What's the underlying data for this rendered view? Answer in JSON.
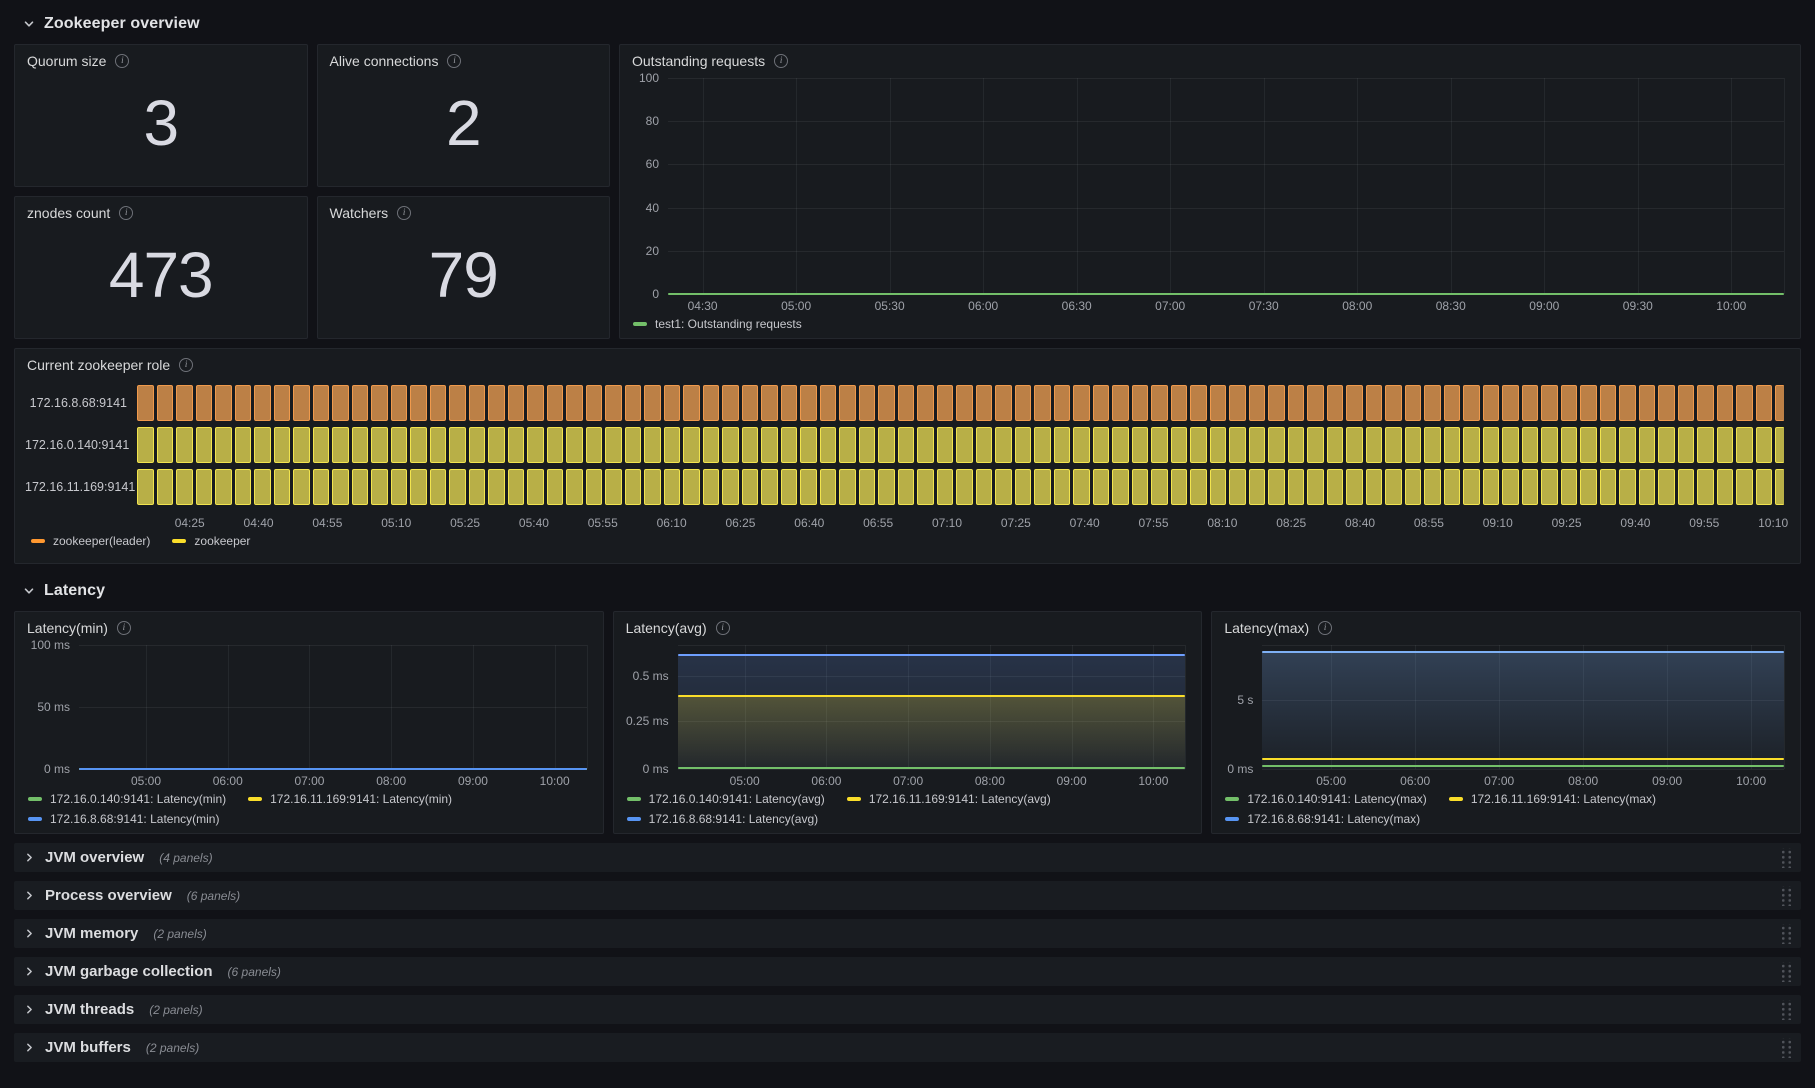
{
  "colors": {
    "background": "#111217",
    "panel": "#181B1F",
    "green": "#73BF69",
    "yellow": "#FADE2A",
    "blue": "#5794F2",
    "orange": "#FF9830"
  },
  "sections": {
    "zookeeper": {
      "title": "Zookeeper overview",
      "state": "expanded"
    },
    "latency": {
      "title": "Latency",
      "state": "expanded"
    }
  },
  "stat_panels": [
    {
      "title": "Quorum size",
      "value": "3"
    },
    {
      "title": "Alive connections",
      "value": "2"
    },
    {
      "title": "znodes count",
      "value": "473"
    },
    {
      "title": "Watchers",
      "value": "79"
    }
  ],
  "chart_data": [
    {
      "type": "line",
      "title": "Outstanding requests",
      "ylim": [
        0,
        100
      ],
      "x_ticks": [
        "04:30",
        "05:00",
        "05:30",
        "06:00",
        "06:30",
        "07:00",
        "07:30",
        "08:00",
        "08:30",
        "09:00",
        "09:30",
        "10:00"
      ],
      "series": [
        {
          "name": "test1: Outstanding requests",
          "color": "#73BF69",
          "flat_value": 0,
          "render": {
            "line_pct": 100,
            "fill": false
          }
        }
      ],
      "legend": [
        {
          "label": "test1: Outstanding requests",
          "color": "#73BF69"
        }
      ],
      "render": {
        "y_axis_width": 38,
        "x_start_pct": 3.1,
        "x_step_pct": 8.38,
        "y_ticks": [
          {
            "label": "100",
            "pct": 0
          },
          {
            "label": "80",
            "pct": 20
          },
          {
            "label": "60",
            "pct": 40
          },
          {
            "label": "40",
            "pct": 60
          },
          {
            "label": "20",
            "pct": 80
          },
          {
            "label": "0",
            "pct": 100
          }
        ]
      }
    },
    {
      "type": "state-timeline",
      "title": "Current zookeeper role",
      "rows": [
        {
          "label": "172.16.8.68:9141",
          "state": "zookeeper(leader)",
          "fill": "#BC8046",
          "border": "#F09A4C"
        },
        {
          "label": "172.16.0.140:9141",
          "state": "zookeeper",
          "fill": "#B8AF47",
          "border": "#F2E44E"
        },
        {
          "label": "172.16.11.169:9141",
          "state": "zookeeper",
          "fill": "#B8AF47",
          "border": "#F2E44E"
        }
      ],
      "x_ticks": [
        "04:25",
        "04:40",
        "04:55",
        "05:10",
        "05:25",
        "05:40",
        "05:55",
        "06:10",
        "06:25",
        "06:40",
        "06:55",
        "07:10",
        "07:25",
        "07:40",
        "07:55",
        "08:10",
        "08:25",
        "08:40",
        "08:55",
        "09:10",
        "09:25",
        "09:40",
        "09:55",
        "10:10"
      ],
      "legend": [
        {
          "label": "zookeeper(leader)",
          "color": "#FF9830"
        },
        {
          "label": "zookeeper",
          "color": "#FADE2A"
        }
      ],
      "render": {
        "label_width": 112,
        "bar_count": 86,
        "x_start_pct": 3.2,
        "x_step_pct": 4.18
      }
    },
    {
      "type": "line",
      "title": "Latency(min)",
      "unit": "ms",
      "ylim": [
        0,
        100
      ],
      "x_ticks": [
        "05:00",
        "06:00",
        "07:00",
        "08:00",
        "09:00",
        "10:00"
      ],
      "series": [
        {
          "name": "172.16.0.140:9141: Latency(min)",
          "color": "#73BF69",
          "flat_value_ms": 0,
          "render": {
            "line_pct": 100,
            "fill": false
          }
        },
        {
          "name": "172.16.11.169:9141: Latency(min)",
          "color": "#FADE2A",
          "flat_value_ms": 0,
          "render": {
            "line_pct": 100,
            "fill": false
          }
        },
        {
          "name": "172.16.8.68:9141: Latency(min)",
          "color": "#5794F2",
          "flat_value_ms": 0,
          "render": {
            "line_pct": 100,
            "fill": false
          }
        }
      ],
      "legend": [
        {
          "label": "172.16.0.140:9141: Latency(min)",
          "color": "#73BF69"
        },
        {
          "label": "172.16.11.169:9141: Latency(min)",
          "color": "#FADE2A"
        },
        {
          "label": "172.16.8.68:9141: Latency(min)",
          "color": "#5794F2"
        }
      ],
      "render": {
        "y_axis_width": 54,
        "x_start_pct": 13.2,
        "x_step_pct": 16.1,
        "y_ticks": [
          {
            "label": "100 ms",
            "pct": 0
          },
          {
            "label": "50 ms",
            "pct": 50
          },
          {
            "label": "0 ms",
            "pct": 100
          }
        ]
      }
    },
    {
      "type": "line",
      "title": "Latency(avg)",
      "unit": "ms",
      "x_ticks": [
        "05:00",
        "06:00",
        "07:00",
        "08:00",
        "09:00",
        "10:00"
      ],
      "series": [
        {
          "name": "172.16.8.68:9141: Latency(avg)",
          "color": "#6E9FFF",
          "flat_value_ms": 0.61,
          "render": {
            "line_pct": 8.3,
            "fill": true,
            "fill_top": "2E",
            "fill_bottom": "0E"
          }
        },
        {
          "name": "172.16.11.169:9141: Latency(avg)",
          "color": "#FADE2A",
          "flat_value_ms": 0.39,
          "render": {
            "line_pct": 41,
            "fill": true,
            "fill_top": "38",
            "fill_bottom": "06"
          }
        },
        {
          "name": "172.16.0.140:9141: Latency(avg)",
          "color": "#73BF69",
          "flat_value_ms": 0.01,
          "render": {
            "line_pct": 99.2,
            "fill": false
          }
        }
      ],
      "legend": [
        {
          "label": "172.16.0.140:9141: Latency(avg)",
          "color": "#73BF69"
        },
        {
          "label": "172.16.11.169:9141: Latency(avg)",
          "color": "#FADE2A"
        },
        {
          "label": "172.16.8.68:9141: Latency(avg)",
          "color": "#5794F2"
        }
      ],
      "render": {
        "y_axis_width": 54,
        "x_start_pct": 13.2,
        "x_step_pct": 16.1,
        "y_ticks": [
          {
            "label": "",
            "pct": 0
          },
          {
            "label": "0.5 ms",
            "pct": 24.7
          },
          {
            "label": "0.25 ms",
            "pct": 61
          },
          {
            "label": "0 ms",
            "pct": 100
          }
        ]
      }
    },
    {
      "type": "line",
      "title": "Latency(max)",
      "unit": "s",
      "x_ticks": [
        "05:00",
        "06:00",
        "07:00",
        "08:00",
        "09:00",
        "10:00"
      ],
      "series": [
        {
          "name": "172.16.8.68:9141: Latency(max)",
          "color": "#7EB0F5",
          "flat_value_s": 8,
          "render": {
            "line_pct": 6,
            "fill": true,
            "fill_top": "40",
            "fill_bottom": "08"
          }
        },
        {
          "name": "172.16.11.169:9141: Latency(max)",
          "color": "#FADE2A",
          "flat_value_s": 0.55,
          "render": {
            "line_pct": 92,
            "fill": false
          }
        },
        {
          "name": "172.16.0.140:9141: Latency(max)",
          "color": "#73BF69",
          "flat_value_s": 0.08,
          "render": {
            "line_pct": 97.8,
            "fill": false
          }
        }
      ],
      "legend": [
        {
          "label": "172.16.0.140:9141: Latency(max)",
          "color": "#73BF69"
        },
        {
          "label": "172.16.11.169:9141: Latency(max)",
          "color": "#FADE2A"
        },
        {
          "label": "172.16.8.68:9141: Latency(max)",
          "color": "#5794F2"
        }
      ],
      "render": {
        "y_axis_width": 40,
        "x_start_pct": 13.2,
        "x_step_pct": 16.1,
        "y_ticks": [
          {
            "label": "",
            "pct": 0
          },
          {
            "label": "5 s",
            "pct": 44
          },
          {
            "label": "0 ms",
            "pct": 100
          }
        ]
      }
    }
  ],
  "collapsed_rows": [
    {
      "title": "JVM overview",
      "count": "(4 panels)"
    },
    {
      "title": "Process overview",
      "count": "(6 panels)"
    },
    {
      "title": "JVM memory",
      "count": "(2 panels)"
    },
    {
      "title": "JVM garbage collection",
      "count": "(6 panels)"
    },
    {
      "title": "JVM threads",
      "count": "(2 panels)"
    },
    {
      "title": "JVM buffers",
      "count": "(2 panels)"
    }
  ]
}
